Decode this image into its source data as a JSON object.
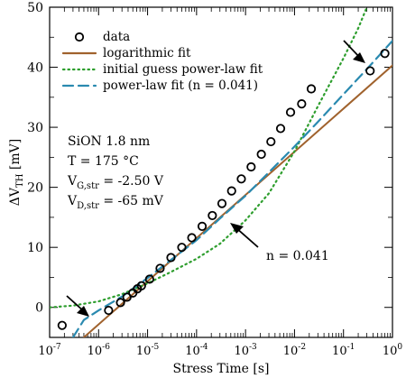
{
  "chart_data": {
    "type": "scatter",
    "xlabel": "Stress Time [s]",
    "ylabel": {
      "main": "ΔV",
      "sub": "TH",
      "unit": " [mV]"
    },
    "xscale": "log",
    "xlim": [
      1e-07,
      1
    ],
    "ylim": [
      -5,
      50
    ],
    "x_ticks": [
      {
        "value": 1e-07,
        "base": "10",
        "exp": "-7"
      },
      {
        "value": 1e-06,
        "base": "10",
        "exp": "-6"
      },
      {
        "value": 1e-05,
        "base": "10",
        "exp": "-5"
      },
      {
        "value": 0.0001,
        "base": "10",
        "exp": "-4"
      },
      {
        "value": 0.001,
        "base": "10",
        "exp": "-3"
      },
      {
        "value": 0.01,
        "base": "10",
        "exp": "-2"
      },
      {
        "value": 0.1,
        "base": "10",
        "exp": "-1"
      },
      {
        "value": 1,
        "base": "10",
        "exp": "0"
      }
    ],
    "y_ticks": [
      0,
      10,
      20,
      30,
      40,
      50
    ],
    "grid": false,
    "legend": {
      "position": "top-left",
      "entries": [
        {
          "label": "data",
          "style": "circle",
          "color": "#000000"
        },
        {
          "label": "logarithmic fit",
          "style": "solid",
          "color": "#a0622d"
        },
        {
          "label": "initial guess power-law fit",
          "style": "dotted",
          "color": "#2e9e2e"
        },
        {
          "label": "power-law fit (n = 0.041)",
          "style": "dashed",
          "color": "#2a8ab0"
        }
      ]
    },
    "conditions": [
      {
        "text": "SiON 1.8 nm"
      },
      {
        "text": "T = 175 °C"
      },
      {
        "text": "V",
        "sub": "G,str",
        "rest": " = -2.50 V"
      },
      {
        "text": "V",
        "sub": "D,str",
        "rest": " = -65 mV"
      }
    ],
    "annotations": [
      {
        "label": "n = 0.041",
        "x": 0.0005,
        "y": 15.3
      },
      {
        "label": "",
        "x": 4e-07,
        "y": -0.7
      },
      {
        "label": "",
        "x": 0.4,
        "y": 41
      }
    ],
    "series": [
      {
        "style": "circle",
        "color": "#000000",
        "points": [
          [
            1.8e-07,
            -3.0
          ],
          [
            1.6e-06,
            -0.5
          ],
          [
            2.8e-06,
            0.8
          ],
          [
            3.8e-06,
            1.7
          ],
          [
            5e-06,
            2.4
          ],
          [
            6.2e-06,
            3.1
          ],
          [
            7.5e-06,
            3.6
          ],
          [
            1.1e-05,
            4.7
          ],
          [
            1.8e-05,
            6.5
          ],
          [
            3e-05,
            8.3
          ],
          [
            5e-05,
            10.0
          ],
          [
            8e-05,
            11.6
          ],
          [
            0.00013,
            13.5
          ],
          [
            0.00021,
            15.3
          ],
          [
            0.00033,
            17.3
          ],
          [
            0.00052,
            19.4
          ],
          [
            0.00082,
            21.4
          ],
          [
            0.0013,
            23.4
          ],
          [
            0.0021,
            25.5
          ],
          [
            0.0033,
            27.6
          ],
          [
            0.0052,
            29.8
          ],
          [
            0.0083,
            32.5
          ],
          [
            0.014,
            33.9
          ],
          [
            0.022,
            36.4
          ],
          [
            0.35,
            39.4
          ],
          [
            0.7,
            42.3
          ]
        ]
      },
      {
        "style": "solid",
        "color": "#a0622d",
        "points": [
          [
            5e-07,
            -5.0
          ],
          [
            1.0,
            40.3
          ]
        ]
      },
      {
        "style": "dotted",
        "color": "#2e9e2e",
        "points": [
          [
            1e-07,
            0.0
          ],
          [
            3e-07,
            0.3
          ],
          [
            1e-06,
            1.0
          ],
          [
            3e-06,
            2.2
          ],
          [
            1e-05,
            4.0
          ],
          [
            3e-05,
            5.9
          ],
          [
            0.0001,
            8.1
          ],
          [
            0.0003,
            10.6
          ],
          [
            0.001,
            14.5
          ],
          [
            0.003,
            19.0
          ],
          [
            0.01,
            26.0
          ],
          [
            0.03,
            33.5
          ],
          [
            0.1,
            41.5
          ],
          [
            0.2,
            46.5
          ],
          [
            0.3,
            50.0
          ]
        ]
      },
      {
        "style": "dashed",
        "color": "#2a8ab0",
        "points": [
          [
            3e-07,
            -5.0
          ],
          [
            5e-07,
            -2.1
          ],
          [
            1e-06,
            -0.5
          ],
          [
            3e-06,
            1.8
          ],
          [
            1e-05,
            4.9
          ],
          [
            3e-05,
            7.9
          ],
          [
            0.0001,
            11.2
          ],
          [
            0.0003,
            14.8
          ],
          [
            0.001,
            18.6
          ],
          [
            0.003,
            22.5
          ],
          [
            0.01,
            26.8
          ],
          [
            0.03,
            30.9
          ],
          [
            0.1,
            35.5
          ],
          [
            0.3,
            39.7
          ],
          [
            1.0,
            44.4
          ]
        ]
      }
    ]
  }
}
